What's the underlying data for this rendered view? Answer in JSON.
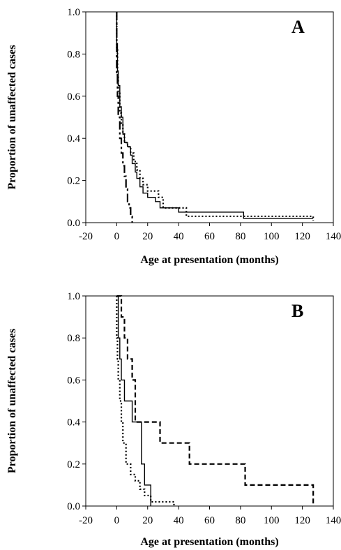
{
  "chart_data": [
    {
      "type": "line",
      "panel_label": "A",
      "xlabel": "Age at presentation (months)",
      "ylabel": "Proportion of unaffected cases",
      "xlim": [
        -20,
        140
      ],
      "ylim": [
        0,
        1
      ],
      "x_ticks": [
        "-20",
        "0",
        "20",
        "40",
        "60",
        "80",
        "100",
        "120",
        "140"
      ],
      "y_ticks": [
        "0.0",
        "0.2",
        "0.4",
        "0.6",
        "0.8",
        "1.0"
      ],
      "grid": false,
      "series": [
        {
          "style": "solid",
          "points": [
            [
              0,
              1.0
            ],
            [
              0,
              0.85
            ],
            [
              0.5,
              0.72
            ],
            [
              1,
              0.65
            ],
            [
              2,
              0.55
            ],
            [
              3,
              0.5
            ],
            [
              4,
              0.42
            ],
            [
              5,
              0.38
            ],
            [
              7,
              0.36
            ],
            [
              9,
              0.32
            ],
            [
              10,
              0.28
            ],
            [
              12,
              0.24
            ],
            [
              13,
              0.21
            ],
            [
              15,
              0.17
            ],
            [
              17,
              0.14
            ],
            [
              20,
              0.12
            ],
            [
              25,
              0.1
            ],
            [
              28,
              0.07
            ],
            [
              40,
              0.05
            ],
            [
              82,
              0.02
            ],
            [
              127,
              0.02
            ]
          ]
        },
        {
          "style": "dotted",
          "points": [
            [
              0,
              1.0
            ],
            [
              0,
              0.82
            ],
            [
              0.5,
              0.7
            ],
            [
              1,
              0.62
            ],
            [
              2,
              0.52
            ],
            [
              3,
              0.47
            ],
            [
              4,
              0.42
            ],
            [
              5,
              0.38
            ],
            [
              7,
              0.36
            ],
            [
              9,
              0.33
            ],
            [
              11,
              0.29
            ],
            [
              13,
              0.25
            ],
            [
              15,
              0.21
            ],
            [
              17,
              0.18
            ],
            [
              20,
              0.15
            ],
            [
              27,
              0.12
            ],
            [
              30,
              0.07
            ],
            [
              45,
              0.03
            ],
            [
              127,
              0.01
            ]
          ]
        },
        {
          "style": "dash-dot",
          "points": [
            [
              0,
              1.0
            ],
            [
              0,
              0.7
            ],
            [
              0.5,
              0.6
            ],
            [
              1,
              0.5
            ],
            [
              2,
              0.4
            ],
            [
              3,
              0.33
            ],
            [
              4,
              0.27
            ],
            [
              5,
              0.22
            ],
            [
              6,
              0.16
            ],
            [
              7,
              0.1
            ],
            [
              8,
              0.07
            ],
            [
              9,
              0.03
            ],
            [
              10,
              0.0
            ]
          ]
        }
      ]
    },
    {
      "type": "line",
      "panel_label": "B",
      "xlabel": "Age at presentation (months)",
      "ylabel": "Proportion of unaffected cases",
      "xlim": [
        -20,
        140
      ],
      "ylim": [
        0,
        1
      ],
      "x_ticks": [
        "-20",
        "0",
        "20",
        "40",
        "60",
        "80",
        "100",
        "120",
        "140"
      ],
      "y_ticks": [
        "0.0",
        "0.2",
        "0.4",
        "0.6",
        "0.8",
        "1.0"
      ],
      "grid": false,
      "series": [
        {
          "style": "solid",
          "points": [
            [
              0,
              1.0
            ],
            [
              1,
              0.8
            ],
            [
              2,
              0.7
            ],
            [
              3,
              0.6
            ],
            [
              5,
              0.5
            ],
            [
              10,
              0.4
            ],
            [
              16,
              0.2
            ],
            [
              18,
              0.1
            ],
            [
              22,
              0.0
            ]
          ]
        },
        {
          "style": "dotted",
          "points": [
            [
              0,
              1.0
            ],
            [
              0,
              0.8
            ],
            [
              0.5,
              0.7
            ],
            [
              1,
              0.6
            ],
            [
              2,
              0.5
            ],
            [
              3,
              0.4
            ],
            [
              4,
              0.3
            ],
            [
              6,
              0.2
            ],
            [
              9,
              0.15
            ],
            [
              12,
              0.12
            ],
            [
              15,
              0.08
            ],
            [
              18,
              0.05
            ],
            [
              22,
              0.02
            ],
            [
              37,
              0.0
            ]
          ]
        },
        {
          "style": "dashed",
          "points": [
            [
              0,
              1.0
            ],
            [
              3,
              1.0
            ],
            [
              3,
              0.9
            ],
            [
              5,
              0.8
            ],
            [
              7,
              0.7
            ],
            [
              10,
              0.6
            ],
            [
              12,
              0.4
            ],
            [
              28,
              0.3
            ],
            [
              47,
              0.2
            ],
            [
              83,
              0.1
            ],
            [
              127,
              0.1
            ],
            [
              127,
              0.0
            ]
          ]
        }
      ]
    }
  ]
}
